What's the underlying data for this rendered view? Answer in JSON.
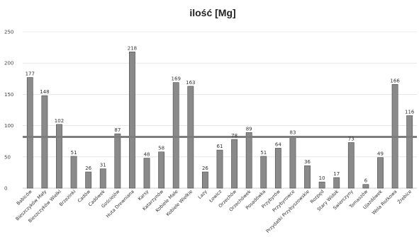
{
  "chart_data": {
    "type": "bar",
    "title": "ilość [Mg]",
    "xlabel": "",
    "ylabel": "",
    "ylim": [
      0,
      250
    ],
    "yticks": [
      0,
      50,
      100,
      150,
      200,
      250
    ],
    "grid": true,
    "legend": "none",
    "reference_line": 82,
    "colors": {
      "bar": "#8a8a8a",
      "bar_edge": "#4a4a4a",
      "reference_line": "#7d7d7d"
    },
    "categories": [
      "Babiców",
      "Bieszczyków Mały",
      "Bieszczyków Wielki",
      "Brzezinki",
      "Cadów",
      "Cadówek",
      "Gościejów",
      "Huta Drewniana",
      "Karsy",
      "Katarzynów",
      "Kobiele Małe",
      "Kobiele Wielkie",
      "Lazy",
      "Łowicz",
      "Orzechów",
      "Orzechówek",
      "Posadówka",
      "Przybyrów",
      "Przybyrowce",
      "Przydatki Przybyszowskie",
      "Rozpęd",
      "Stary Widok",
      "Swierczyny",
      "Tomaszów",
      "Ujazdówek",
      "Wola Rożkowa",
      "Żrebice"
    ],
    "values": [
      177,
      148,
      102,
      51,
      26,
      31,
      87,
      218,
      48,
      58,
      169,
      163,
      26,
      61,
      78,
      89,
      51,
      64,
      83,
      36,
      10,
      17,
      73,
      6,
      49,
      166,
      116
    ]
  }
}
